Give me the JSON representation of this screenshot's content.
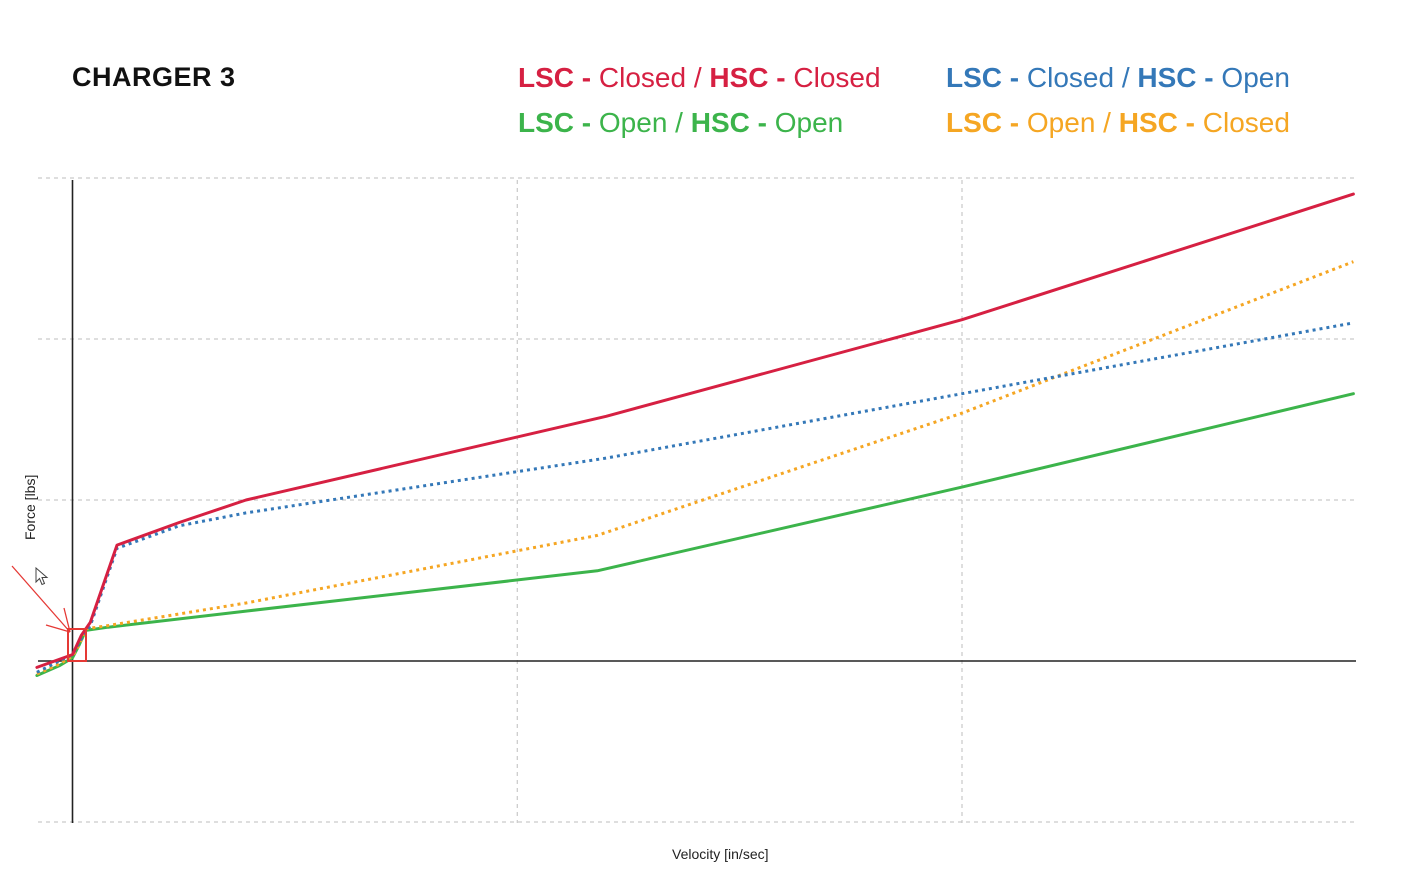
{
  "chart_data": {
    "type": "line",
    "title": "CHARGER 3",
    "xlabel": "Velocity [in/sec]",
    "ylabel": "Force [lbs]",
    "grid": true,
    "xlim": [
      -0.8,
      29
    ],
    "ylim": [
      -5,
      15
    ],
    "legend_position": "top",
    "legend": [
      {
        "parts": [
          "LSC",
          " - ",
          "Closed",
          " / ",
          "HSC",
          " - ",
          "Closed"
        ],
        "color": "#d62042",
        "style": "solid"
      },
      {
        "parts": [
          "LSC",
          " - ",
          "Closed",
          " / ",
          "HSC",
          " - ",
          "Open"
        ],
        "color": "#3478b8",
        "style": "dotted"
      },
      {
        "parts": [
          "LSC",
          " - ",
          "Open",
          " / ",
          "HSC",
          " - ",
          "Open"
        ],
        "color": "#3cb44b",
        "style": "solid"
      },
      {
        "parts": [
          "LSC",
          " - ",
          "Open",
          " / ",
          "HSC",
          " - ",
          "Closed"
        ],
        "color": "#f5a623",
        "style": "dotted"
      }
    ],
    "series": [
      {
        "name": "LSC - Closed / HSC - Closed",
        "color": "#d62042",
        "dash": false,
        "x": [
          -0.8,
          -0.3,
          0,
          0.2,
          0.4,
          1.0,
          2.4,
          3.9,
          12.0,
          20.0,
          28.8
        ],
        "y": [
          -0.2,
          0.05,
          0.2,
          0.8,
          1.2,
          3.6,
          4.3,
          5.0,
          7.6,
          10.6,
          14.5
        ]
      },
      {
        "name": "LSC - Closed / HSC - Open",
        "color": "#3478b8",
        "dash": true,
        "x": [
          -0.8,
          -0.3,
          0,
          0.2,
          0.4,
          1.0,
          2.4,
          3.9,
          12.0,
          20.0,
          28.8
        ],
        "y": [
          -0.35,
          0.0,
          0.2,
          0.7,
          1.1,
          3.5,
          4.2,
          4.6,
          6.3,
          8.3,
          10.5
        ]
      },
      {
        "name": "LSC - Open / HSC - Open",
        "color": "#3cb44b",
        "dash": false,
        "x": [
          -0.8,
          -0.3,
          0,
          0.15,
          0.3,
          0.8,
          3.9,
          11.8,
          20.0,
          28.8
        ],
        "y": [
          -0.45,
          -0.15,
          0.1,
          0.5,
          0.95,
          1.05,
          1.55,
          2.8,
          5.4,
          8.3
        ]
      },
      {
        "name": "LSC - Open / HSC - Closed",
        "color": "#f5a623",
        "dash": true,
        "x": [
          -0.8,
          -0.3,
          0,
          0.15,
          0.3,
          0.8,
          3.9,
          11.8,
          20.0,
          28.8
        ],
        "y": [
          -0.4,
          -0.1,
          0.15,
          0.5,
          1.0,
          1.1,
          1.8,
          3.9,
          7.7,
          12.4
        ]
      }
    ]
  }
}
